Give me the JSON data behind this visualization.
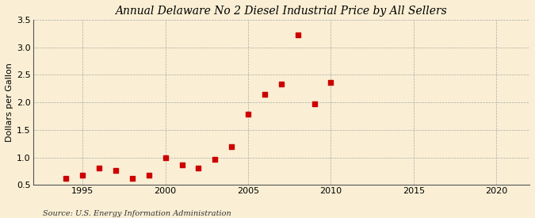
{
  "title": "Annual Delaware No 2 Diesel Industrial Price by All Sellers",
  "ylabel": "Dollars per Gallon",
  "source": "Source: U.S. Energy Information Administration",
  "background_color": "#faefd4",
  "marker_color": "#cc0000",
  "xlim": [
    1992,
    2022
  ],
  "ylim": [
    0.5,
    3.5
  ],
  "xticks": [
    1995,
    2000,
    2005,
    2010,
    2015,
    2020
  ],
  "yticks": [
    0.5,
    1.0,
    1.5,
    2.0,
    2.5,
    3.0,
    3.5
  ],
  "years": [
    1994,
    1995,
    1996,
    1997,
    1998,
    1999,
    2000,
    2001,
    2002,
    2003,
    2004,
    2005,
    2006,
    2007,
    2008,
    2009,
    2010
  ],
  "values": [
    0.62,
    0.67,
    0.8,
    0.76,
    0.62,
    0.67,
    1.0,
    0.87,
    0.81,
    0.97,
    1.19,
    1.79,
    2.15,
    2.33,
    3.22,
    1.97,
    2.36
  ],
  "title_fontsize": 10,
  "tick_fontsize": 8,
  "ylabel_fontsize": 8,
  "source_fontsize": 7
}
